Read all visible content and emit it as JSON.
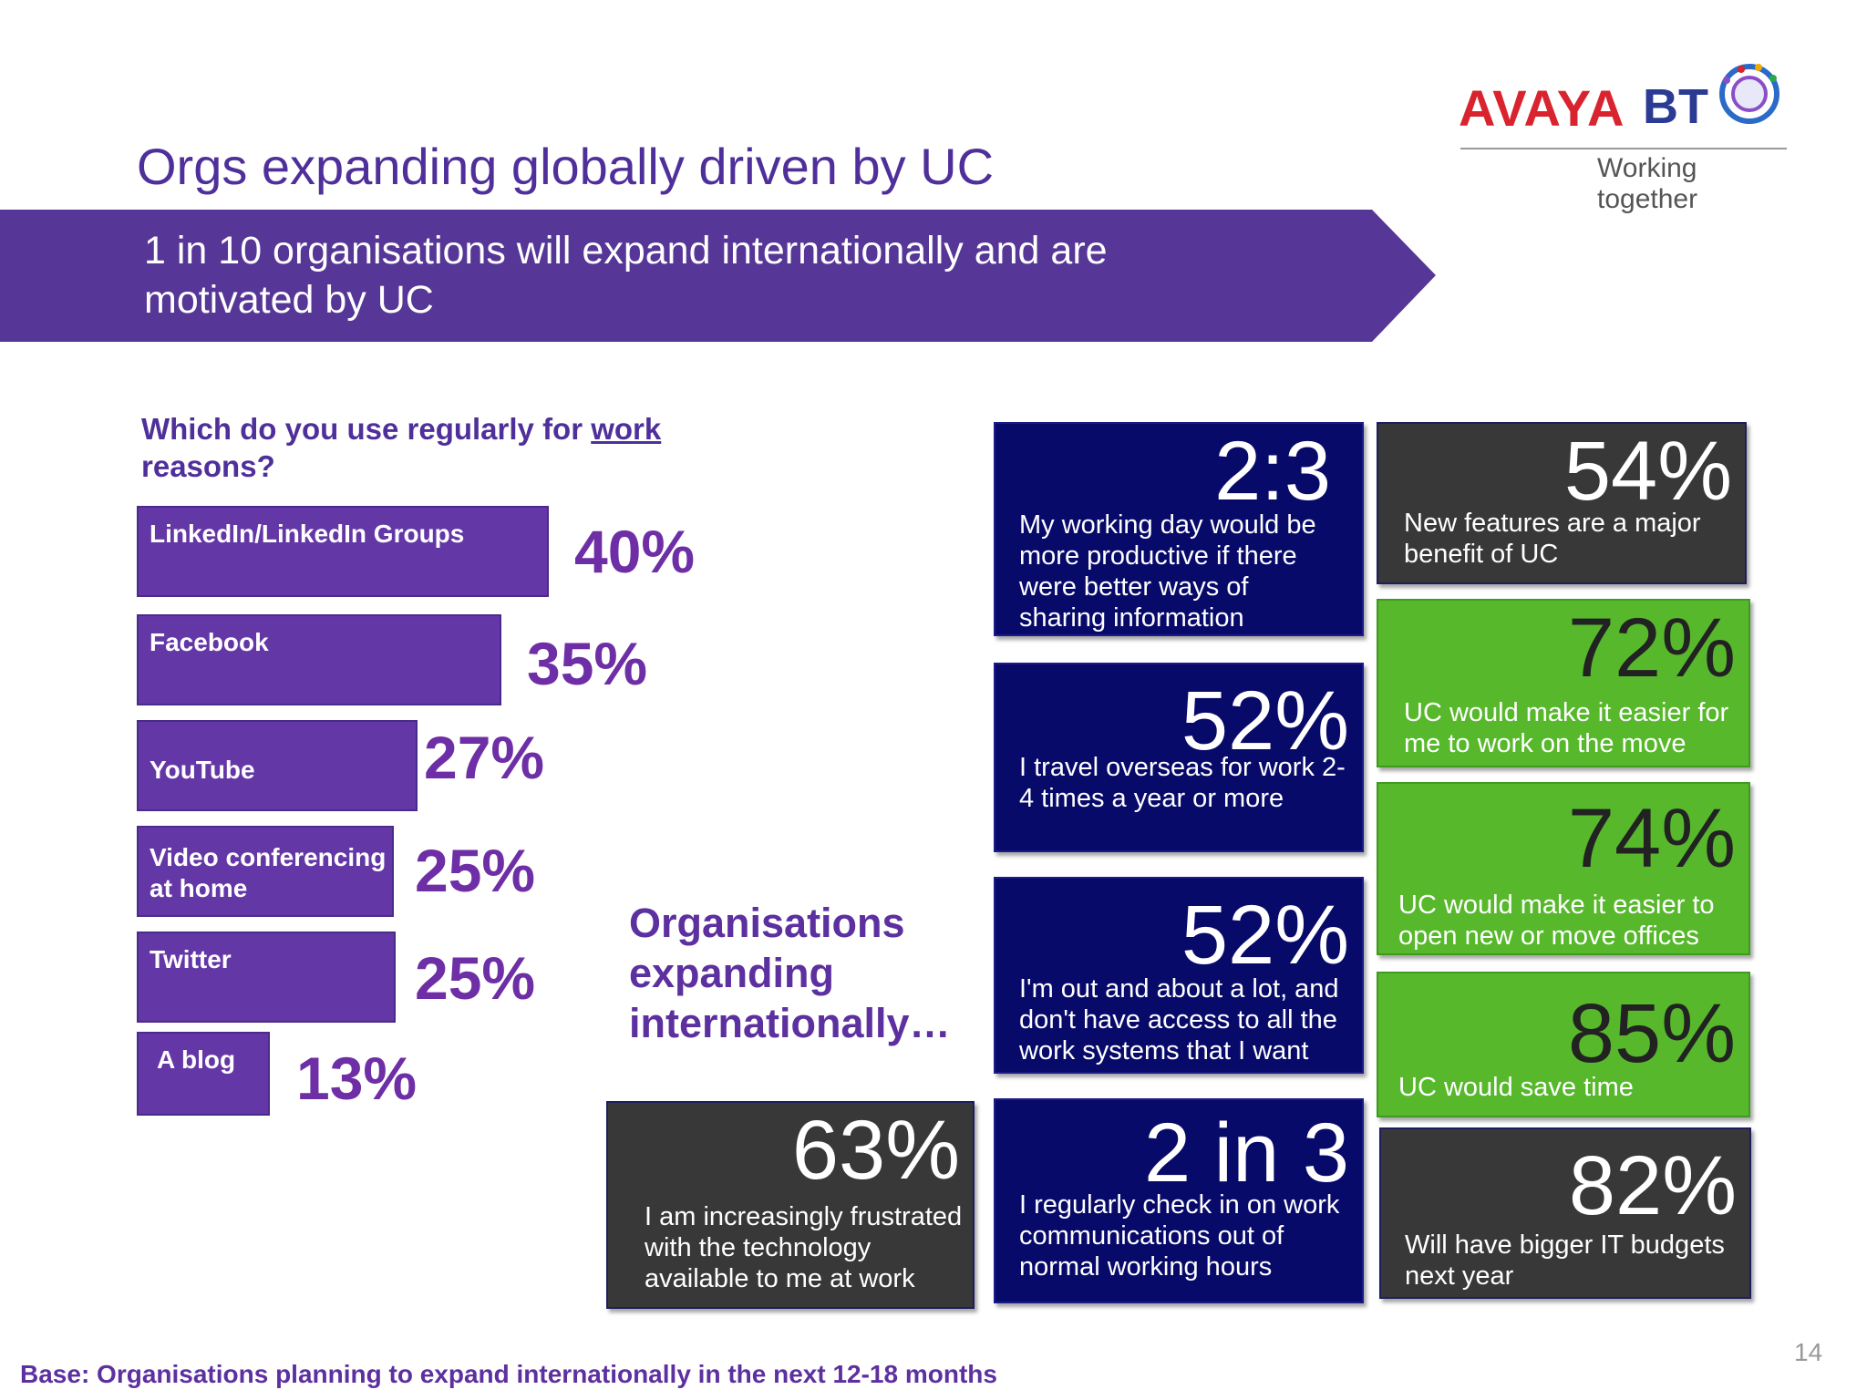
{
  "title": "Orgs expanding globally driven by UC",
  "logos": {
    "avaya": "AVAYA",
    "bt": "BT",
    "tagline": "Working together"
  },
  "banner": {
    "text": "1 in 10 organisations will expand internationally and are motivated by UC"
  },
  "question": {
    "prefix": "Which do you use regularly for ",
    "emphasis": "work",
    "suffix": " reasons?"
  },
  "bars": [
    {
      "label": "LinkedIn/LinkedIn Groups",
      "percent": "40%",
      "value": 40
    },
    {
      "label": "Facebook",
      "percent": "35%",
      "value": 35
    },
    {
      "label": "YouTube",
      "percent": "27%",
      "value": 27
    },
    {
      "label": "Video conferencing at home",
      "percent": "25%",
      "value": 25
    },
    {
      "label": "Twitter",
      "percent": "25%",
      "value": 25
    },
    {
      "label": "A blog",
      "percent": "13%",
      "value": 13
    }
  ],
  "orgs_heading": "Organisations expanding internationally…",
  "stats": [
    {
      "big": "63%",
      "text": "I am increasingly frustrated with the technology available to me at work"
    },
    {
      "big": "2:3",
      "text": "My working day would be more productive if there were better ways of sharing information"
    },
    {
      "big": "52%",
      "text": "I travel overseas for work 2-4 times a year or more"
    },
    {
      "big": "52%",
      "text": "I'm out and about a lot, and don't have access to all the work systems that I want"
    },
    {
      "big": "2 in 3",
      "text": "I regularly check in on work communications out of normal working hours"
    },
    {
      "big": "54%",
      "text": "New features are a major benefit of UC"
    },
    {
      "big": "72%",
      "text": "UC would make it easier for me to work on the move"
    },
    {
      "big": "74%",
      "text": "UC would make it easier to open new or move offices"
    },
    {
      "big": "85%",
      "text": "UC would save time"
    },
    {
      "big": "82%",
      "text": "Will have bigger IT budgets next year"
    }
  ],
  "base_note": "Base: Organisations planning to expand internationally in the next 12-18 months",
  "page_number": "14",
  "colors": {
    "purple": "#563696",
    "navy": "#080a6a",
    "dark": "#383838",
    "green": "#57b82c"
  }
}
